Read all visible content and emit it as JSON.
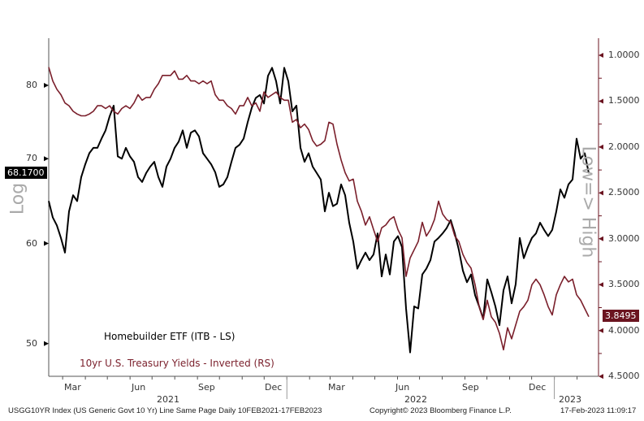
{
  "chart_data": {
    "type": "line",
    "x_start": "2021-02-10",
    "x_end": "2023-02-17",
    "x_sampling": "evenly spaced between x_start and x_end",
    "left_axis": {
      "title": "Log",
      "scale": "log",
      "ticks": [
        "50",
        "60",
        "70",
        "80"
      ],
      "tick_values": [
        50,
        60,
        70,
        80
      ],
      "range": [
        47,
        85
      ]
    },
    "right_axis": {
      "title": "Low=> High",
      "inverted": true,
      "ticks": [
        "1.0000",
        "1.5000",
        "2.0000",
        "2.5000",
        "3.0000",
        "3.5000",
        "4.0000",
        "4.5000"
      ],
      "tick_values": [
        1,
        1.5,
        2,
        2.5,
        3,
        3.5,
        4,
        4.5
      ],
      "range": [
        0.85,
        4.5
      ]
    },
    "x_ticks": [
      {
        "label": "Mar",
        "date": "2021-03-15"
      },
      {
        "label": "Jun",
        "date": "2021-06-15"
      },
      {
        "label": "Sep",
        "date": "2021-09-15"
      },
      {
        "label": "Dec",
        "date": "2021-12-15"
      },
      {
        "label": "Mar",
        "date": "2022-03-15"
      },
      {
        "label": "Jun",
        "date": "2022-06-15"
      },
      {
        "label": "Sep",
        "date": "2022-09-15"
      },
      {
        "label": "Dec",
        "date": "2022-12-15"
      }
    ],
    "years": [
      {
        "label": "2021"
      },
      {
        "label": "2022"
      },
      {
        "label": "2023"
      }
    ],
    "series": [
      {
        "name": "Homebuilder ETF (ITB - LS)",
        "axis": "left",
        "color": "#000000",
        "last_value_label": "68.1700",
        "values": [
          64.8,
          62.9,
          62.0,
          60.6,
          59.0,
          63.6,
          65.5,
          64.8,
          67.7,
          69.3,
          70.7,
          71.4,
          71.4,
          72.6,
          73.7,
          75.6,
          77.1,
          70.3,
          70.0,
          71.4,
          70.3,
          69.6,
          67.7,
          67.1,
          68.2,
          69.0,
          69.6,
          67.7,
          66.5,
          69.0,
          70.0,
          71.4,
          72.2,
          73.7,
          71.4,
          73.4,
          73.7,
          72.9,
          70.7,
          70.0,
          69.3,
          68.3,
          66.5,
          66.8,
          67.7,
          69.6,
          71.4,
          71.8,
          72.6,
          74.8,
          76.8,
          78.2,
          78.6,
          77.4,
          81.4,
          82.6,
          80.6,
          77.4,
          82.6,
          80.6,
          76.3,
          77.1,
          71.4,
          69.6,
          70.7,
          69.0,
          68.2,
          67.4,
          63.6,
          65.8,
          64.2,
          64.5,
          66.8,
          65.5,
          62.3,
          60.2,
          57.3,
          58.2,
          59.0,
          58.2,
          58.8,
          61.1,
          56.5,
          58.8,
          56.7,
          60.2,
          60.8,
          59.6,
          53.3,
          49.2,
          53.5,
          53.3,
          56.7,
          57.3,
          58.2,
          60.2,
          60.6,
          61.1,
          61.7,
          62.6,
          61.1,
          59.3,
          57.1,
          55.9,
          56.7,
          54.6,
          53.5,
          52.3,
          56.2,
          54.9,
          53.5,
          51.7,
          55.1,
          56.5,
          53.8,
          55.7,
          60.6,
          58.4,
          59.6,
          60.6,
          61.1,
          62.3,
          61.5,
          60.8,
          61.5,
          63.6,
          66.2,
          65.2,
          66.8,
          67.4,
          72.6,
          70.0,
          70.7,
          68.17
        ]
      },
      {
        "name": "10yr U.S. Treasury Yields - Inverted (RS)",
        "axis": "right",
        "color": "#7a1f2b",
        "last_value_label": "3.8495",
        "values": [
          1.13,
          1.28,
          1.37,
          1.43,
          1.52,
          1.55,
          1.61,
          1.64,
          1.66,
          1.66,
          1.64,
          1.61,
          1.55,
          1.55,
          1.58,
          1.55,
          1.61,
          1.64,
          1.58,
          1.55,
          1.58,
          1.52,
          1.43,
          1.49,
          1.46,
          1.46,
          1.37,
          1.31,
          1.22,
          1.22,
          1.22,
          1.17,
          1.26,
          1.26,
          1.22,
          1.28,
          1.28,
          1.31,
          1.28,
          1.31,
          1.28,
          1.43,
          1.49,
          1.49,
          1.55,
          1.58,
          1.64,
          1.55,
          1.55,
          1.46,
          1.55,
          1.52,
          1.61,
          1.4,
          1.46,
          1.43,
          1.4,
          1.46,
          1.49,
          1.49,
          1.73,
          1.7,
          1.79,
          1.75,
          1.81,
          1.93,
          1.99,
          1.97,
          1.93,
          1.73,
          1.75,
          1.97,
          2.14,
          2.28,
          2.37,
          2.35,
          2.59,
          2.7,
          2.85,
          2.76,
          2.9,
          3.03,
          2.88,
          2.85,
          2.79,
          2.76,
          2.9,
          2.99,
          3.41,
          3.21,
          3.12,
          3.03,
          2.82,
          2.97,
          2.9,
          2.79,
          2.59,
          2.73,
          2.79,
          2.82,
          2.97,
          3.03,
          3.17,
          3.26,
          3.32,
          3.5,
          3.74,
          3.88,
          3.67,
          3.85,
          3.91,
          4.03,
          4.21,
          3.97,
          4.09,
          3.94,
          3.79,
          3.74,
          3.67,
          3.5,
          3.44,
          3.5,
          3.61,
          3.74,
          3.83,
          3.61,
          3.5,
          3.41,
          3.47,
          3.44,
          3.61,
          3.67,
          3.76,
          3.8495
        ]
      }
    ]
  },
  "footer": {
    "source": "USGG10YR Index (US Generic Govt 10 Yr) Line Same Page  Daily 10FEB2021-17FEB2023",
    "copyright": "Copyright© 2023 Bloomberg Finance L.P.",
    "timestamp": "17-Feb-2023 11:09:17"
  }
}
